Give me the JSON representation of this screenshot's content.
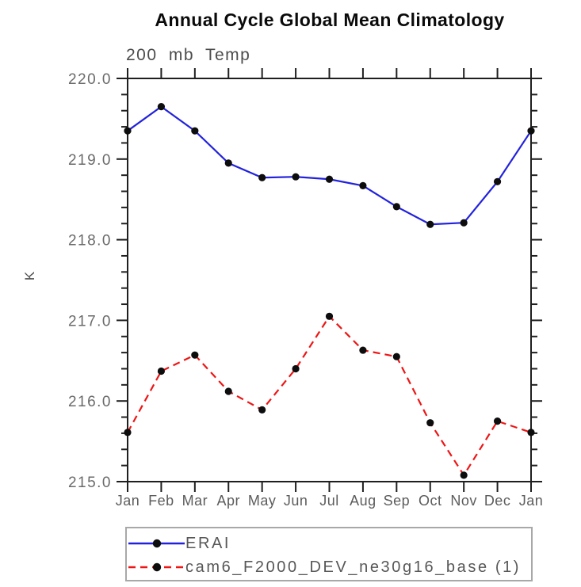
{
  "chart_data": {
    "type": "line",
    "title": "Annual Cycle Global Mean Climatology",
    "subtitle": "200 mb Temp",
    "ylabel": "K",
    "xlabel": "",
    "categories": [
      "Jan",
      "Feb",
      "Mar",
      "Apr",
      "May",
      "Jun",
      "Jul",
      "Aug",
      "Sep",
      "Oct",
      "Nov",
      "Dec",
      "Jan"
    ],
    "ylim": [
      215.0,
      220.0
    ],
    "ytick_interval_major": 1.0,
    "ytick_interval_minor": 0.2,
    "ytick_labels": [
      "220.0",
      "219.0",
      "218.0",
      "217.0",
      "216.0",
      "215.0"
    ],
    "grid": false,
    "legend": {
      "position": "bottom-left",
      "border": true
    },
    "axis_color": "#1f1f1f",
    "tick_label_color": "#6a6a6a",
    "series": [
      {
        "name": "ERAI",
        "color": "#2222dd",
        "line_style": "solid",
        "marker": "filled-circle",
        "marker_color": "#0d0d0d",
        "values": [
          219.35,
          219.65,
          219.35,
          218.95,
          218.77,
          218.78,
          218.75,
          218.67,
          218.41,
          218.19,
          218.21,
          218.72,
          219.35
        ]
      },
      {
        "name": "cam6_F2000_DEV_ne30g16_base (1)",
        "color": "#ee1515",
        "line_style": "dashed",
        "marker": "filled-circle",
        "marker_color": "#0d0d0d",
        "values": [
          215.61,
          216.37,
          216.57,
          216.12,
          215.89,
          216.4,
          217.05,
          216.63,
          216.55,
          215.73,
          215.08,
          215.75,
          215.61
        ]
      }
    ]
  }
}
